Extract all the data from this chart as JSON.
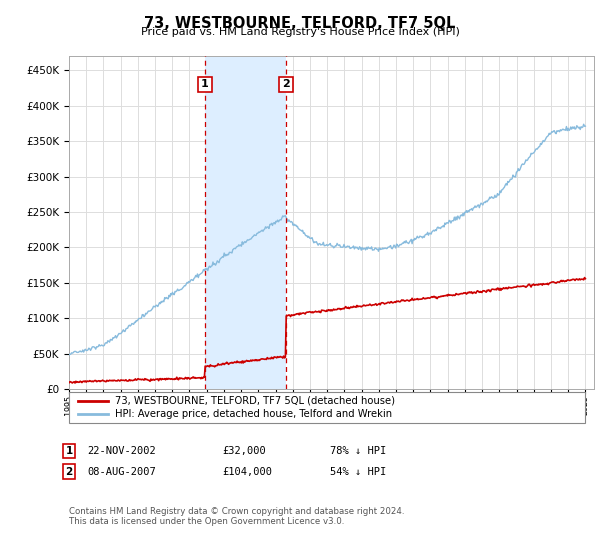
{
  "title": "73, WESTBOURNE, TELFORD, TF7 5QL",
  "subtitle": "Price paid vs. HM Land Registry's House Price Index (HPI)",
  "ytick_values": [
    0,
    50000,
    100000,
    150000,
    200000,
    250000,
    300000,
    350000,
    400000,
    450000
  ],
  "ylim": [
    0,
    470000
  ],
  "xlim": [
    1995,
    2025.5
  ],
  "sale1_date": "22-NOV-2002",
  "sale1_price": 32000,
  "sale1_pct": "78% ↓ HPI",
  "sale1_x": 2002.9,
  "sale2_date": "08-AUG-2007",
  "sale2_price": 104000,
  "sale2_pct": "54% ↓ HPI",
  "sale2_x": 2007.6,
  "legend_label1": "73, WESTBOURNE, TELFORD, TF7 5QL (detached house)",
  "legend_label2": "HPI: Average price, detached house, Telford and Wrekin",
  "footnote": "Contains HM Land Registry data © Crown copyright and database right 2024.\nThis data is licensed under the Open Government Licence v3.0.",
  "bg_color": "#ffffff",
  "grid_color": "#dddddd",
  "sale_color": "#cc0000",
  "highlight_color": "#ddeeff",
  "hpi_line_color": "#88bbdd"
}
